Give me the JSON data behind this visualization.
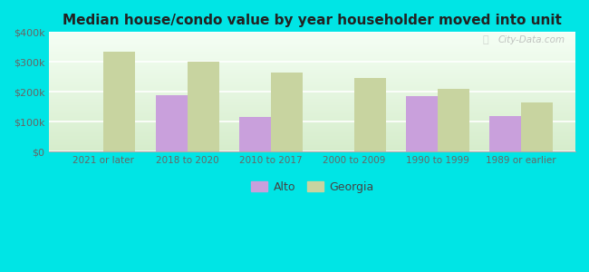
{
  "title": "Median house/condo value by year householder moved into unit",
  "categories": [
    "2021 or later",
    "2018 to 2020",
    "2010 to 2017",
    "2000 to 2009",
    "1990 to 1999",
    "1989 or earlier"
  ],
  "alto_values": [
    null,
    190000,
    115000,
    null,
    185000,
    120000
  ],
  "georgia_values": [
    335000,
    300000,
    265000,
    245000,
    210000,
    165000
  ],
  "alto_color": "#c9a0dc",
  "georgia_color": "#c8d4a0",
  "background_color": "#00e5e5",
  "ylim": [
    0,
    400000
  ],
  "yticks": [
    0,
    100000,
    200000,
    300000,
    400000
  ],
  "ytick_labels": [
    "$0",
    "$100k",
    "$200k",
    "$300k",
    "$400k"
  ],
  "legend_alto": "Alto",
  "legend_georgia": "Georgia",
  "bar_width": 0.38,
  "watermark": "City-Data.com"
}
